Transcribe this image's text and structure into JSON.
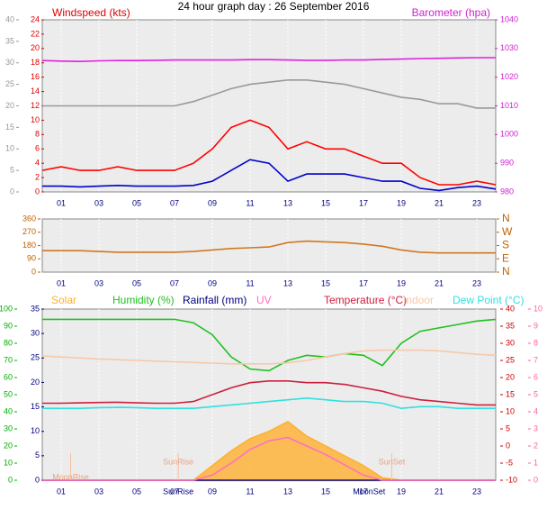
{
  "chart_data": [
    {
      "type": "line",
      "title": "24 hour graph day : 26 September 2016",
      "ylabel": "Windspeed (kts)",
      "y2label": "Barometer (hpa)",
      "axis_colors": {
        "y": "#e00000",
        "y2": "#d020d0",
        "y3": "#999999"
      },
      "x": [
        0,
        1,
        2,
        3,
        4,
        5,
        6,
        7,
        8,
        9,
        10,
        11,
        12,
        13,
        14,
        15,
        16,
        17,
        18,
        19,
        20,
        21,
        22,
        23,
        24
      ],
      "xlim": [
        0,
        24
      ],
      "xticks": [
        {
          "value": 1,
          "label": "01"
        },
        {
          "value": 3,
          "label": "03"
        },
        {
          "value": 5,
          "label": "05"
        },
        {
          "value": 7,
          "label": "07"
        },
        {
          "value": 9,
          "label": "09"
        },
        {
          "value": 11,
          "label": "11"
        },
        {
          "value": 13,
          "label": "13"
        },
        {
          "value": 15,
          "label": "15"
        },
        {
          "value": 17,
          "label": "17"
        },
        {
          "value": 19,
          "label": "19"
        },
        {
          "value": 21,
          "label": "21"
        },
        {
          "value": 23,
          "label": "23"
        }
      ],
      "ylim": [
        0,
        24
      ],
      "yticks": [
        0,
        2,
        4,
        6,
        8,
        10,
        12,
        14,
        16,
        18,
        20,
        22,
        24
      ],
      "y2lim": [
        980,
        1040
      ],
      "y2ticks": [
        980,
        990,
        1000,
        1010,
        1020,
        1030,
        1040
      ],
      "y3lim": [
        0,
        40
      ],
      "y3ticks": [
        0,
        5,
        10,
        15,
        20,
        25,
        30,
        35,
        40
      ],
      "series": [
        {
          "color": "#999999",
          "axis": "y3",
          "values": [
            20,
            20,
            20,
            20,
            20,
            20,
            20,
            20,
            21,
            22.5,
            24,
            25,
            25.5,
            26,
            26,
            25.5,
            25,
            24,
            23,
            22,
            21.5,
            20.5,
            20.5,
            19.5,
            19.5
          ]
        },
        {
          "color": "#ff0000",
          "values": [
            3,
            3.5,
            3,
            3,
            3.5,
            3,
            3,
            3,
            4,
            6,
            9,
            10,
            9,
            6,
            7,
            6,
            6,
            5,
            4,
            4,
            2,
            1,
            1,
            1.5,
            1
          ]
        },
        {
          "color": "#0000cc",
          "values": [
            0.8,
            0.8,
            0.7,
            0.8,
            0.9,
            0.8,
            0.8,
            0.8,
            0.9,
            1.5,
            3,
            4.5,
            4,
            1.5,
            2.5,
            2.5,
            2.5,
            2,
            1.5,
            1.5,
            0.5,
            0.2,
            0.6,
            0.8,
            0.4
          ]
        },
        {
          "color": "#e020e0",
          "axis": "y2",
          "values": [
            1025.8,
            1025.6,
            1025.5,
            1025.7,
            1025.8,
            1025.8,
            1025.9,
            1026,
            1026,
            1026,
            1026,
            1026.1,
            1026.1,
            1026,
            1025.9,
            1025.9,
            1026,
            1026,
            1026.2,
            1026.3,
            1026.5,
            1026.6,
            1026.7,
            1026.8,
            1026.8
          ]
        }
      ]
    },
    {
      "type": "line",
      "axis_colors": {
        "y": "#c06000",
        "y2": "#c06000"
      },
      "x": [
        0,
        1,
        2,
        3,
        4,
        5,
        6,
        7,
        8,
        9,
        10,
        11,
        12,
        13,
        14,
        15,
        16,
        17,
        18,
        19,
        20,
        21,
        22,
        23,
        24
      ],
      "xlim": [
        0,
        24
      ],
      "xticks": [
        {
          "value": 1,
          "label": "01"
        },
        {
          "value": 3,
          "label": "03"
        },
        {
          "value": 5,
          "label": "05"
        },
        {
          "value": 7,
          "label": "07"
        },
        {
          "value": 9,
          "label": "09"
        },
        {
          "value": 11,
          "label": "11"
        },
        {
          "value": 13,
          "label": "13"
        },
        {
          "value": 15,
          "label": "15"
        },
        {
          "value": 17,
          "label": "17"
        },
        {
          "value": 19,
          "label": "19"
        },
        {
          "value": 21,
          "label": "21"
        },
        {
          "value": 23,
          "label": "23"
        }
      ],
      "ylim": [
        0,
        360
      ],
      "yticks": [
        0,
        90,
        180,
        270,
        360
      ],
      "y2lim": [
        0,
        360
      ],
      "y2ticks": [
        {
          "value": 0,
          "label": "N"
        },
        {
          "value": 90,
          "label": "E"
        },
        {
          "value": 180,
          "label": "S"
        },
        {
          "value": 270,
          "label": "W"
        },
        {
          "value": 360,
          "label": "N"
        }
      ],
      "series": [
        {
          "color": "#d07820",
          "values": [
            145,
            145,
            145,
            140,
            135,
            135,
            135,
            135,
            140,
            150,
            160,
            165,
            170,
            200,
            210,
            205,
            200,
            190,
            175,
            150,
            135,
            130,
            130,
            130,
            130
          ]
        }
      ]
    },
    {
      "type": "line",
      "axis_colors": {
        "y": "#00b000",
        "y2": "#cc0000",
        "y3": "#000080",
        "y4": "#ff60a0"
      },
      "x": [
        0,
        1,
        2,
        3,
        4,
        5,
        6,
        7,
        8,
        9,
        10,
        11,
        12,
        13,
        14,
        15,
        16,
        17,
        18,
        19,
        20,
        21,
        22,
        23,
        24
      ],
      "xlim": [
        0,
        24
      ],
      "xticks": [
        {
          "value": 1,
          "label": "01"
        },
        {
          "value": 3,
          "label": "03"
        },
        {
          "value": 5,
          "label": "05"
        },
        {
          "value": 7,
          "label": "07"
        },
        {
          "value": 9,
          "label": "09"
        },
        {
          "value": 11,
          "label": "11"
        },
        {
          "value": 13,
          "label": "13"
        },
        {
          "value": 15,
          "label": "15"
        },
        {
          "value": 17,
          "label": "17"
        },
        {
          "value": 19,
          "label": "19"
        },
        {
          "value": 21,
          "label": "21"
        },
        {
          "value": 23,
          "label": "23"
        }
      ],
      "ylim": [
        0,
        100
      ],
      "yticks": [
        0,
        10,
        20,
        30,
        40,
        50,
        60,
        70,
        80,
        90,
        100
      ],
      "y2lim": [
        -10,
        40
      ],
      "y2ticks": [
        -10,
        -5,
        0,
        5,
        10,
        15,
        20,
        25,
        30,
        35,
        40
      ],
      "y3lim": [
        0,
        35
      ],
      "y3ticks": [
        0,
        5,
        10,
        15,
        20,
        25,
        30,
        35
      ],
      "y4lim": [
        0,
        10
      ],
      "y4ticks": [
        0,
        1,
        2,
        3,
        4,
        5,
        6,
        7,
        8,
        9,
        10
      ],
      "series": [
        {
          "name": "Solar",
          "color": "#ffb030",
          "axis": "y3",
          "fill": true,
          "values": [
            0,
            0,
            0,
            0,
            0,
            0,
            0,
            0,
            0,
            3,
            6,
            8.5,
            10,
            12,
            9,
            7,
            5,
            3,
            0.5,
            0,
            0,
            0,
            0,
            0,
            0
          ]
        },
        {
          "name": "Humidity (%)",
          "color": "#20c020",
          "values": [
            94,
            94,
            94,
            94,
            94,
            94,
            94,
            94,
            92,
            85,
            72,
            65,
            64,
            70,
            73,
            72,
            74,
            73,
            67,
            80,
            87,
            89,
            91,
            93,
            94
          ]
        },
        {
          "name": "Rainfall (mm)",
          "color": "#000080",
          "axis": "y3",
          "values": [
            0,
            0,
            0,
            0,
            0,
            0,
            0,
            0,
            0,
            0,
            0,
            0,
            0,
            0,
            0,
            0,
            0,
            0,
            0,
            0,
            0,
            0,
            0,
            0,
            0
          ]
        },
        {
          "name": "UV",
          "color": "#ff70c0",
          "axis": "y4",
          "values": [
            0,
            0,
            0,
            0,
            0,
            0,
            0,
            0,
            0,
            0.3,
            1,
            1.8,
            2.3,
            2.5,
            2,
            1.5,
            0.9,
            0.3,
            0,
            0,
            0,
            0,
            0,
            0,
            0
          ]
        },
        {
          "name": "Temperature (°C)",
          "color": "#cc2040",
          "axis": "y2",
          "values": [
            12.5,
            12.5,
            12.6,
            12.7,
            12.8,
            12.6,
            12.5,
            12.5,
            13,
            15,
            17,
            18.5,
            19,
            19,
            18.5,
            18.5,
            18,
            17,
            16,
            14.5,
            13.5,
            13,
            12.5,
            12,
            12
          ]
        },
        {
          "name": "Indoor",
          "color": "#f8c8a8",
          "axis": "y2",
          "values": [
            26.3,
            26,
            25.7,
            25.4,
            25.2,
            25,
            24.8,
            24.6,
            24.4,
            24.2,
            24,
            24,
            24,
            24.3,
            25,
            26,
            27,
            27.8,
            28,
            28,
            28,
            27.8,
            27.3,
            26.8,
            26.5
          ]
        },
        {
          "name": "Dew Point (°C)",
          "color": "#30e0e0",
          "axis": "y2",
          "values": [
            11,
            11,
            11,
            11.2,
            11.3,
            11.2,
            11,
            11,
            11,
            11.5,
            12,
            12.5,
            13,
            13.5,
            14,
            13.5,
            13,
            13,
            12.5,
            11,
            11.5,
            11.5,
            11,
            11,
            11
          ]
        }
      ],
      "annotations": [
        {
          "text": "MoonRise",
          "x": 1.5,
          "position": "plot"
        },
        {
          "text": "SunRise",
          "x": 7.2,
          "position": "plot"
        },
        {
          "text": "SunSet",
          "x": 18.5,
          "position": "plot"
        },
        {
          "text": "SunRise",
          "x": 7.2,
          "position": "axis"
        },
        {
          "text": "MoonSet",
          "x": 17.3,
          "position": "axis"
        }
      ]
    }
  ]
}
